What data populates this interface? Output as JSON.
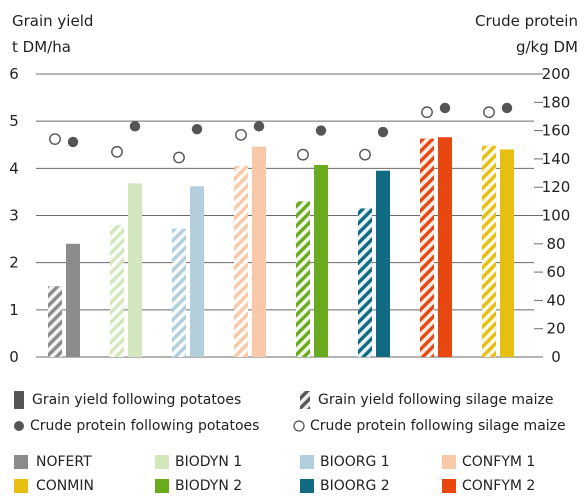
{
  "chart_data": {
    "type": "bar",
    "left_axis": {
      "title": "Grain yield",
      "unit": "t DM/ha",
      "ticks": [
        "0",
        "1",
        "2",
        "3",
        "4",
        "5",
        "6"
      ],
      "ylim": [
        0,
        6
      ]
    },
    "right_axis": {
      "title": "Crude protein",
      "unit": "g/kg DM",
      "ticks": [
        "0",
        "20",
        "40",
        "60",
        "80",
        "100",
        "120",
        "140",
        "160",
        "180",
        "200"
      ],
      "ylim": [
        0,
        200
      ]
    },
    "grid": true,
    "categories": [
      "NOFERT",
      "CONMIN",
      "BIODYN 1",
      "BIODYN 2",
      "BIOORG 1",
      "BIOORG 2",
      "CONFYM 1",
      "CONFYM 2"
    ],
    "groups": [
      {
        "treatments": [
          "NOFERT"
        ],
        "colors": [
          "#8c8c8c"
        ],
        "yield_silage": 1.5,
        "yield_potatoes": 2.4,
        "protein_silage": 154,
        "protein_potatoes": 152
      },
      {
        "treatments": [
          "BIODYN 1"
        ],
        "colors": [
          "#d3e6bc"
        ],
        "yield_silage": 2.8,
        "yield_potatoes": 3.68,
        "protein_silage": 145,
        "protein_potatoes": 163
      },
      {
        "treatments": [
          "BIOORG 1"
        ],
        "colors": [
          "#b3cfdd"
        ],
        "yield_silage": 2.72,
        "yield_potatoes": 3.62,
        "protein_silage": 141,
        "protein_potatoes": 161
      },
      {
        "treatments": [
          "CONFYM 1"
        ],
        "colors": [
          "#f8c9a8"
        ],
        "yield_silage": 4.05,
        "yield_potatoes": 4.46,
        "protein_silage": 157,
        "protein_potatoes": 163
      },
      {
        "treatments": [
          "BIODYN 2"
        ],
        "colors": [
          "#6aaa1e"
        ],
        "yield_silage": 3.3,
        "yield_potatoes": 4.07,
        "protein_silage": 143,
        "protein_potatoes": 160
      },
      {
        "treatments": [
          "BIOORG 2"
        ],
        "colors": [
          "#0f6a82"
        ],
        "yield_silage": 3.15,
        "yield_potatoes": 3.95,
        "protein_silage": 143,
        "protein_potatoes": 159
      },
      {
        "treatments": [
          "CONFYM 2"
        ],
        "colors": [
          "#e8470f"
        ],
        "yield_silage": 4.63,
        "yield_potatoes": 4.66,
        "protein_silage": 173,
        "protein_potatoes": 176
      },
      {
        "treatments": [
          "CONMIN"
        ],
        "colors": [
          "#e6bf10"
        ],
        "yield_silage": 4.48,
        "yield_potatoes": 4.4,
        "protein_silage": 173,
        "protein_potatoes": 176
      }
    ]
  },
  "legend": {
    "series": [
      {
        "label": "Grain yield following potatoes",
        "icon": "solid-bar-icon"
      },
      {
        "label": "Grain yield following silage maize",
        "icon": "hatched-bar-icon"
      },
      {
        "label": "Crude protein following potatoes",
        "icon": "filled-circle-icon"
      },
      {
        "label": "Crude protein following silage maize",
        "icon": "open-circle-icon"
      }
    ],
    "treatments_row1": [
      {
        "label": "NOFERT",
        "color": "#8c8c8c"
      },
      {
        "label": "BIODYN 1",
        "color": "#d3e6bc"
      },
      {
        "label": "BIOORG 1",
        "color": "#b3cfdd"
      },
      {
        "label": "CONFYM 1",
        "color": "#f8c9a8"
      }
    ],
    "treatments_row2": [
      {
        "label": "CONMIN",
        "color": "#e6bf10"
      },
      {
        "label": "BIODYN 2",
        "color": "#6aaa1e"
      },
      {
        "label": "BIOORG 2",
        "color": "#0f6a82"
      },
      {
        "label": "CONFYM 2",
        "color": "#e8470f"
      }
    ]
  }
}
